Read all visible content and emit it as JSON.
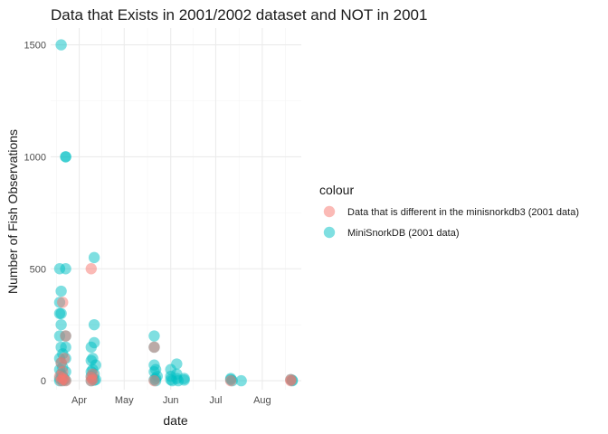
{
  "chart_data": {
    "type": "scatter",
    "title": "Data that Exists in 2001/2002 dataset and NOT in 2001",
    "xlabel": "date",
    "ylabel": "Number of Fish Observations",
    "xlim": [
      "2001-03-13",
      "2001-08-27"
    ],
    "ylim": [
      -40,
      1575
    ],
    "x_ticks": [
      {
        "date": "2001-04-01",
        "label": "Apr"
      },
      {
        "date": "2001-05-01",
        "label": "May"
      },
      {
        "date": "2001-06-01",
        "label": "Jun"
      },
      {
        "date": "2001-07-01",
        "label": "Jul"
      },
      {
        "date": "2001-08-01",
        "label": "Aug"
      }
    ],
    "y_ticks": [
      0,
      500,
      1000,
      1500
    ],
    "grid": true,
    "legend": {
      "title": "colour",
      "position": "right",
      "entries": [
        {
          "label": "Data that is different in the minisnorkdb3 (2001 data)",
          "color": "#F8766D"
        },
        {
          "label": "MiniSnorkDB (2001 data)",
          "color": "#00BFC4"
        }
      ]
    },
    "series": [
      {
        "name": "MiniSnorkDB (2001 data)",
        "color": "#00BFC4",
        "points": [
          {
            "x": "2001-03-20",
            "y": 1500
          },
          {
            "x": "2001-03-23",
            "y": 1000
          },
          {
            "x": "2001-03-23",
            "y": 1000
          },
          {
            "x": "2001-03-19",
            "y": 500
          },
          {
            "x": "2001-03-23",
            "y": 500
          },
          {
            "x": "2001-03-20",
            "y": 400
          },
          {
            "x": "2001-03-19",
            "y": 350
          },
          {
            "x": "2001-03-19",
            "y": 300
          },
          {
            "x": "2001-03-20",
            "y": 300
          },
          {
            "x": "2001-03-20",
            "y": 250
          },
          {
            "x": "2001-03-19",
            "y": 200
          },
          {
            "x": "2001-03-23",
            "y": 200
          },
          {
            "x": "2001-03-20",
            "y": 150
          },
          {
            "x": "2001-03-23",
            "y": 150
          },
          {
            "x": "2001-03-21",
            "y": 120
          },
          {
            "x": "2001-03-19",
            "y": 100
          },
          {
            "x": "2001-03-23",
            "y": 100
          },
          {
            "x": "2001-03-20",
            "y": 80
          },
          {
            "x": "2001-03-21",
            "y": 60
          },
          {
            "x": "2001-03-19",
            "y": 50
          },
          {
            "x": "2001-03-23",
            "y": 40
          },
          {
            "x": "2001-03-20",
            "y": 30
          },
          {
            "x": "2001-03-21",
            "y": 20
          },
          {
            "x": "2001-03-19",
            "y": 10
          },
          {
            "x": "2001-03-22",
            "y": 5
          },
          {
            "x": "2001-03-23",
            "y": 2
          },
          {
            "x": "2001-03-19",
            "y": 0
          },
          {
            "x": "2001-03-21",
            "y": 0
          },
          {
            "x": "2001-04-11",
            "y": 550
          },
          {
            "x": "2001-04-11",
            "y": 250
          },
          {
            "x": "2001-04-11",
            "y": 170
          },
          {
            "x": "2001-04-09",
            "y": 150
          },
          {
            "x": "2001-04-10",
            "y": 100
          },
          {
            "x": "2001-04-09",
            "y": 90
          },
          {
            "x": "2001-04-12",
            "y": 70
          },
          {
            "x": "2001-04-10",
            "y": 50
          },
          {
            "x": "2001-04-09",
            "y": 40
          },
          {
            "x": "2001-04-11",
            "y": 30
          },
          {
            "x": "2001-04-09",
            "y": 20
          },
          {
            "x": "2001-04-10",
            "y": 10
          },
          {
            "x": "2001-04-12",
            "y": 5
          },
          {
            "x": "2001-04-11",
            "y": 2
          },
          {
            "x": "2001-04-09",
            "y": 0
          },
          {
            "x": "2001-05-21",
            "y": 200
          },
          {
            "x": "2001-05-21",
            "y": 150
          },
          {
            "x": "2001-05-21",
            "y": 70
          },
          {
            "x": "2001-05-22",
            "y": 50
          },
          {
            "x": "2001-05-21",
            "y": 40
          },
          {
            "x": "2001-05-23",
            "y": 20
          },
          {
            "x": "2001-05-22",
            "y": 10
          },
          {
            "x": "2001-05-21",
            "y": 5
          },
          {
            "x": "2001-05-22",
            "y": 0
          },
          {
            "x": "2001-06-01",
            "y": 50
          },
          {
            "x": "2001-06-01",
            "y": 20
          },
          {
            "x": "2001-06-01",
            "y": 5
          },
          {
            "x": "2001-06-02",
            "y": 0
          },
          {
            "x": "2001-06-05",
            "y": 75
          },
          {
            "x": "2001-06-05",
            "y": 30
          },
          {
            "x": "2001-06-05",
            "y": 10
          },
          {
            "x": "2001-06-06",
            "y": 0
          },
          {
            "x": "2001-06-10",
            "y": 10
          },
          {
            "x": "2001-06-10",
            "y": 3
          },
          {
            "x": "2001-07-11",
            "y": 10
          },
          {
            "x": "2001-07-11",
            "y": 5
          },
          {
            "x": "2001-07-12",
            "y": 0
          },
          {
            "x": "2001-07-18",
            "y": 0
          },
          {
            "x": "2001-08-20",
            "y": 5
          },
          {
            "x": "2001-08-21",
            "y": 2
          },
          {
            "x": "2001-08-21",
            "y": 0
          }
        ]
      },
      {
        "name": "Data that is different in the minisnorkdb3 (2001 data)",
        "color": "#F8766D",
        "points": [
          {
            "x": "2001-03-21",
            "y": 350
          },
          {
            "x": "2001-03-23",
            "y": 200
          },
          {
            "x": "2001-03-22",
            "y": 100
          },
          {
            "x": "2001-03-20",
            "y": 80
          },
          {
            "x": "2001-03-21",
            "y": 40
          },
          {
            "x": "2001-03-19",
            "y": 20
          },
          {
            "x": "2001-03-21",
            "y": 10
          },
          {
            "x": "2001-03-22",
            "y": 5
          },
          {
            "x": "2001-03-20",
            "y": 0
          },
          {
            "x": "2001-03-23",
            "y": 0
          },
          {
            "x": "2001-04-09",
            "y": 500
          },
          {
            "x": "2001-04-10",
            "y": 30
          },
          {
            "x": "2001-04-09",
            "y": 15
          },
          {
            "x": "2001-04-10",
            "y": 5
          },
          {
            "x": "2001-04-09",
            "y": 0
          },
          {
            "x": "2001-05-21",
            "y": 150
          },
          {
            "x": "2001-05-21",
            "y": 0
          },
          {
            "x": "2001-07-11",
            "y": 0
          },
          {
            "x": "2001-08-20",
            "y": 5
          },
          {
            "x": "2001-08-20",
            "y": 0
          }
        ]
      }
    ]
  }
}
